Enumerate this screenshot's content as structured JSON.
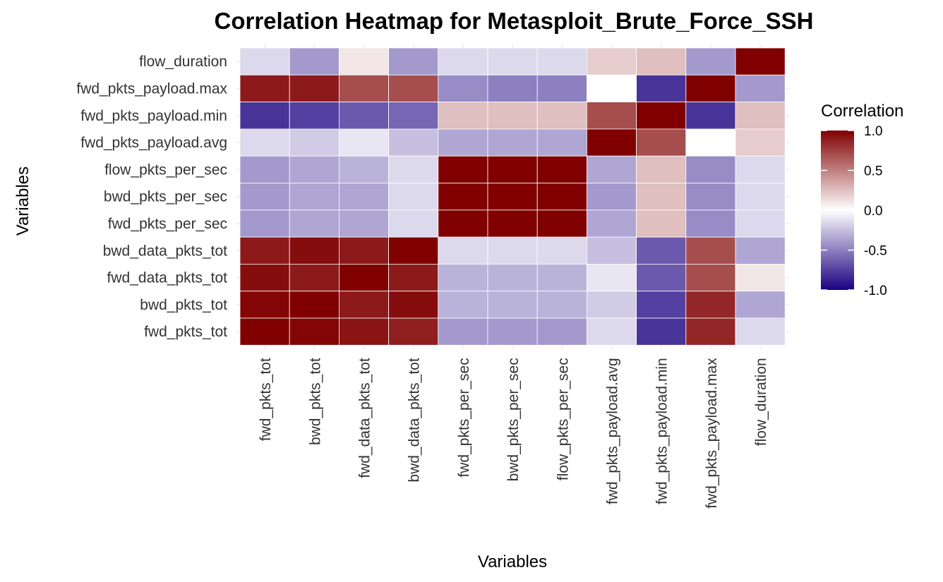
{
  "chart_data": {
    "type": "heatmap",
    "title": "Correlation Heatmap for Metasploit_Brute_Force_SSH",
    "xlabel": "Variables",
    "ylabel": "Variables",
    "x_categories": [
      "fwd_pkts_tot",
      "bwd_pkts_tot",
      "fwd_data_pkts_tot",
      "bwd_data_pkts_tot",
      "fwd_pkts_per_sec",
      "bwd_pkts_per_sec",
      "flow_pkts_per_sec",
      "fwd_pkts_payload.avg",
      "fwd_pkts_payload.min",
      "fwd_pkts_payload.max",
      "flow_duration"
    ],
    "y_categories_top_to_bottom": [
      "flow_duration",
      "fwd_pkts_payload.max",
      "fwd_pkts_payload.min",
      "fwd_pkts_payload.avg",
      "flow_pkts_per_sec",
      "bwd_pkts_per_sec",
      "fwd_pkts_per_sec",
      "bwd_data_pkts_tot",
      "fwd_data_pkts_tot",
      "bwd_pkts_tot",
      "fwd_pkts_tot"
    ],
    "values": [
      [
        -0.15,
        -0.4,
        0.1,
        -0.4,
        -0.15,
        -0.15,
        -0.15,
        0.2,
        0.25,
        -0.4,
        1.0
      ],
      [
        0.9,
        0.9,
        0.7,
        0.7,
        -0.45,
        -0.5,
        -0.5,
        0.0,
        -0.8,
        1.0,
        -0.4
      ],
      [
        -0.8,
        -0.75,
        -0.65,
        -0.6,
        0.25,
        0.25,
        0.25,
        0.7,
        1.0,
        -0.8,
        0.25
      ],
      [
        -0.15,
        -0.2,
        -0.1,
        -0.25,
        -0.35,
        -0.35,
        -0.35,
        1.0,
        0.7,
        0.0,
        0.2
      ],
      [
        -0.4,
        -0.35,
        -0.3,
        -0.15,
        1.0,
        1.0,
        1.0,
        -0.35,
        0.25,
        -0.45,
        -0.15
      ],
      [
        -0.4,
        -0.35,
        -0.35,
        -0.15,
        1.0,
        1.0,
        1.0,
        -0.4,
        0.25,
        -0.45,
        -0.15
      ],
      [
        -0.4,
        -0.35,
        -0.35,
        -0.15,
        1.0,
        1.0,
        1.0,
        -0.35,
        0.25,
        -0.45,
        -0.15
      ],
      [
        0.9,
        0.95,
        0.9,
        1.0,
        -0.15,
        -0.15,
        -0.15,
        -0.25,
        -0.65,
        0.7,
        -0.35
      ],
      [
        0.95,
        0.9,
        1.0,
        0.9,
        -0.3,
        -0.3,
        -0.3,
        -0.1,
        -0.65,
        0.7,
        0.1
      ],
      [
        0.98,
        1.0,
        0.9,
        0.95,
        -0.3,
        -0.3,
        -0.3,
        -0.2,
        -0.75,
        0.85,
        -0.35
      ],
      [
        1.0,
        0.98,
        0.92,
        0.88,
        -0.4,
        -0.4,
        -0.4,
        -0.15,
        -0.8,
        0.85,
        -0.15
      ]
    ],
    "color_scale": {
      "low": "#1a0080",
      "mid": "#ffffff",
      "high": "#800000",
      "limits": [
        -1.0,
        1.0
      ],
      "midpoint": 0.0
    },
    "legend": {
      "title": "Correlation",
      "ticks": [
        "1.0",
        "0.5",
        "0.0",
        "-0.5",
        "-1.0"
      ],
      "placement": "right"
    },
    "grid": true,
    "background_color": "#ffffff",
    "gridline_color": "#ebebeb",
    "text_color": "#333333"
  }
}
